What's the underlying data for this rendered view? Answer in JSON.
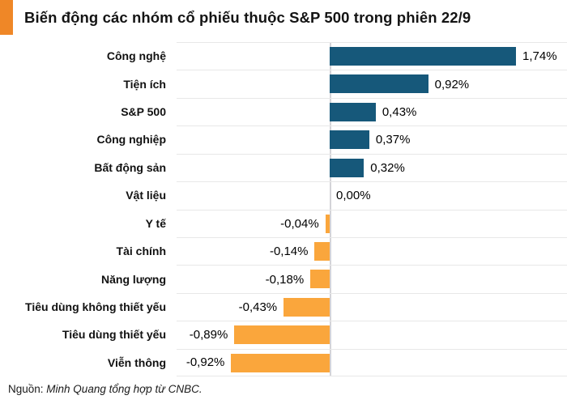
{
  "title": "Biến động các nhóm cổ phiếu thuộc S&P 500 trong phiên 22/9",
  "source": {
    "prefix": "Nguồn: ",
    "text": "Minh Quang tổng hợp từ CNBC."
  },
  "colors": {
    "positive_bar": "#16587A",
    "negative_bar": "#FAA63C",
    "accent_block": "#EF8727",
    "zero_line": "#D4D4D8",
    "grid_line": "#E8E8E8"
  },
  "chart_data": {
    "type": "bar",
    "orientation": "horizontal",
    "title": "Biến động các nhóm cổ phiếu thuộc S&P 500 trong phiên 22/9",
    "xlabel": "",
    "ylabel": "",
    "xlim": [
      -1.45,
      2.2
    ],
    "grid": "row-separators-only",
    "legend_position": "none",
    "value_format": "comma-decimal-percent",
    "categories": [
      "Công nghệ",
      "Tiện ích",
      "S&P 500",
      "Công nghiệp",
      "Bất động sản",
      "Vật liệu",
      "Y tế",
      "Tài chính",
      "Năng lượng",
      "Tiêu dùng không thiết yếu",
      "Tiêu dùng thiết yếu",
      "Viễn thông"
    ],
    "values": [
      1.74,
      0.92,
      0.43,
      0.37,
      0.32,
      0.0,
      -0.04,
      -0.14,
      -0.18,
      -0.43,
      -0.89,
      -0.92
    ],
    "value_labels": [
      "1,74%",
      "0,92%",
      "0,43%",
      "0,37%",
      "0,32%",
      "0,00%",
      "-0,04%",
      "-0,14%",
      "-0,18%",
      "-0,43%",
      "-0,89%",
      "-0,92%"
    ]
  }
}
